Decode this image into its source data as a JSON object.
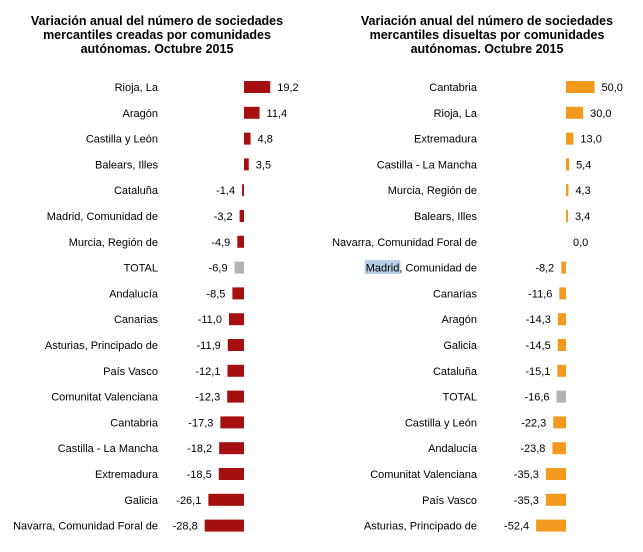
{
  "colors": {
    "created_bar": "#a50f0f",
    "dissolved_bar": "#f39a1e",
    "total_bar": "#b3b3b3",
    "highlight": "#b8cde6"
  },
  "chart_data": [
    {
      "type": "bar",
      "orientation": "horizontal",
      "title_lines": [
        "Variación anual del número de sociedades",
        "mercantiles creadas por comunidades",
        "autónomas. Octubre 2015"
      ],
      "categories": [
        "Rioja, La",
        "Aragón",
        "Castilla y León",
        "Balears, Illes",
        "Cataluña",
        "Madrid, Comunidad de",
        "Murcia, Región de",
        "TOTAL",
        "Andalucía",
        "Canarias",
        "Asturias, Principado de",
        "País Vasco",
        "Comunitat Valenciana",
        "Cantabria",
        "Castilla - La Mancha",
        "Extremadura",
        "Galicia",
        "Navarra, Comunidad Foral de"
      ],
      "values": [
        19.2,
        11.4,
        4.8,
        3.5,
        -1.4,
        -3.2,
        -4.9,
        -6.9,
        -8.5,
        -11.0,
        -11.9,
        -12.1,
        -12.3,
        -17.3,
        -18.2,
        -18.5,
        -26.1,
        -28.8
      ],
      "value_labels": [
        "19,2",
        "11,4",
        "4,8",
        "3,5",
        "-1,4",
        "-3,2",
        "-4,9",
        "-6,9",
        "-8,5",
        "-11,0",
        "-11,9",
        "-12,1",
        "-12,3",
        "-17,3",
        "-18,2",
        "-18,5",
        "-26,1",
        "-28,8"
      ],
      "highlight_category": "TOTAL"
    },
    {
      "type": "bar",
      "orientation": "horizontal",
      "title_lines": [
        "Variación anual del número de sociedades",
        "mercantiles disueltas por comunidades",
        "autónomas. Octubre 2015"
      ],
      "categories": [
        "Cantabria",
        "Rioja, La",
        "Extremadura",
        "Castilla - La Mancha",
        "Murcia, Región de",
        "Balears, Illes",
        "Navarra, Comunidad Foral de",
        "Madrid, Comunidad de",
        "Canarias",
        "Aragón",
        "Galicia",
        "Cataluña",
        "TOTAL",
        "Castilla y León",
        "Andalucía",
        "Comunitat Valenciana",
        "País Vasco",
        "Asturias, Principado de"
      ],
      "values": [
        50.0,
        30.0,
        13.0,
        5.4,
        4.3,
        3.4,
        0.0,
        -8.2,
        -11.6,
        -14.3,
        -14.5,
        -15.1,
        -16.6,
        -22.3,
        -23.8,
        -35.3,
        -35.3,
        -52.4
      ],
      "value_labels": [
        "50,0",
        "30,0",
        "13,0",
        "5,4",
        "4,3",
        "3,4",
        "0,0",
        "-8,2",
        "-11,6",
        "-14,3",
        "-14,5",
        "-15,1",
        "-16,6",
        "-22,3",
        "-23,8",
        "-35,3",
        "-35,3",
        "-52,4"
      ],
      "highlight_category": "TOTAL",
      "selected_text": "Madrid"
    }
  ]
}
